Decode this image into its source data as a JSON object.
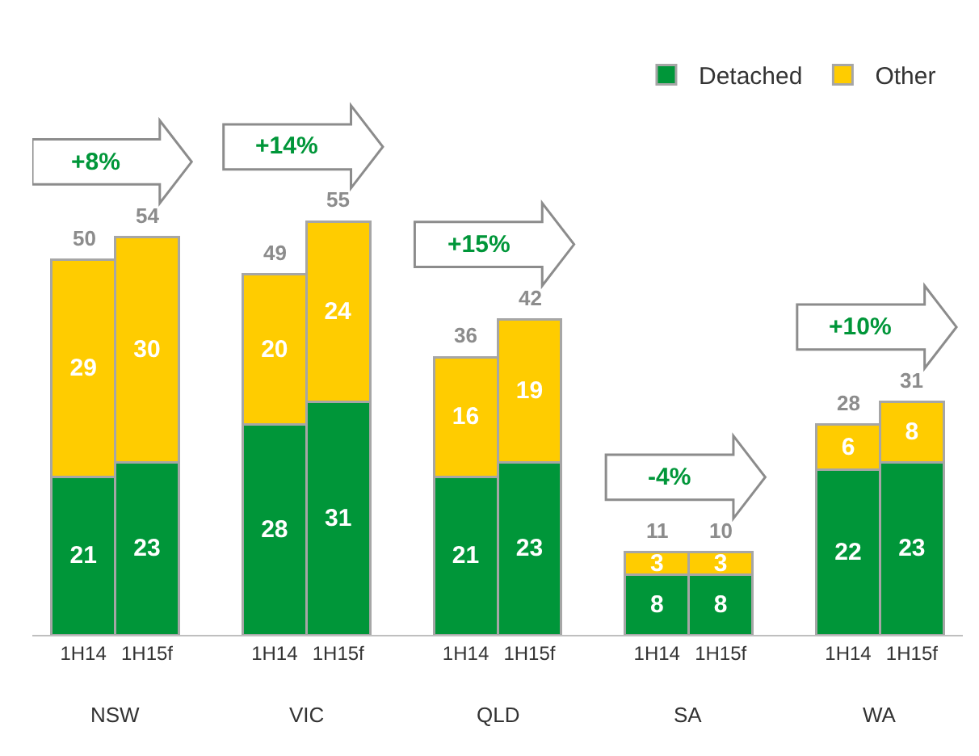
{
  "chart_data": {
    "type": "bar",
    "stacked": true,
    "data_labels": true,
    "legend": "top right",
    "grid": false,
    "categories": [
      "1H14",
      "1H15f",
      "1H14",
      "1H15f",
      "1H14",
      "1H15f",
      "1H14",
      "1H15f",
      "1H14",
      "1H15f"
    ],
    "series": [
      {
        "name": "Detached",
        "color": "#009639",
        "values": [
          21,
          23,
          28,
          31,
          21,
          23,
          8,
          8,
          22,
          23
        ]
      },
      {
        "name": "Other",
        "color": "#ffcc00",
        "values": [
          29,
          30,
          20,
          24,
          16,
          19,
          3,
          3,
          6,
          8
        ]
      }
    ],
    "totals": [
      "50",
      "54",
      "49",
      "55",
      "36",
      "42",
      "11",
      "10",
      "28",
      "31"
    ],
    "annotations": [
      "NSW",
      "VIC",
      "QLD",
      "SA",
      "WA",
      "+8%",
      "+14%",
      "+15%",
      "-4%",
      "+10%"
    ]
  }
}
